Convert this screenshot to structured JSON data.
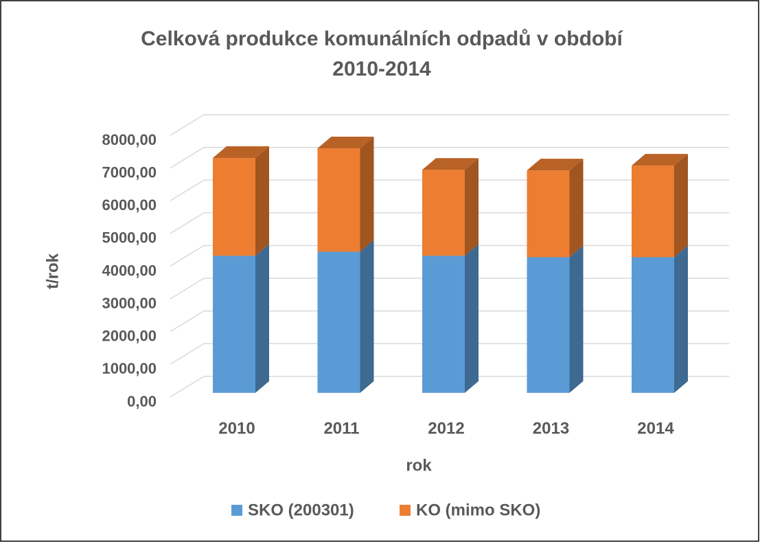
{
  "chart_data": {
    "type": "bar3d_stacked",
    "title": "Celková produkce komunálních odpadů v období 2010-2014",
    "x_label": "rok",
    "y_label": "t/rok",
    "categories": [
      "2010",
      "2011",
      "2012",
      "2013",
      "2014"
    ],
    "series": [
      {
        "name": "SKO (200301)",
        "color": "#5b9bd5",
        "values": [
          4190,
          4316,
          4190,
          4147,
          4147
        ]
      },
      {
        "name": "KO (mimo SKO)",
        "color": "#ed7d31",
        "values": [
          2990,
          3158,
          2630,
          2653,
          2800
        ]
      }
    ],
    "ylim": [
      0,
      8000
    ],
    "yticks": [
      {
        "value": 0,
        "label": "0,00"
      },
      {
        "value": 1000,
        "label": "1000,00"
      },
      {
        "value": 2000,
        "label": "2000,00"
      },
      {
        "value": 3000,
        "label": "3000,00"
      },
      {
        "value": 4000,
        "label": "4000,00"
      },
      {
        "value": 5000,
        "label": "5000,00"
      },
      {
        "value": 6000,
        "label": "6000,00"
      },
      {
        "value": 7000,
        "label": "7000,00"
      },
      {
        "value": 8000,
        "label": "8000,00"
      }
    ],
    "grid": true,
    "legend": "bottom"
  }
}
